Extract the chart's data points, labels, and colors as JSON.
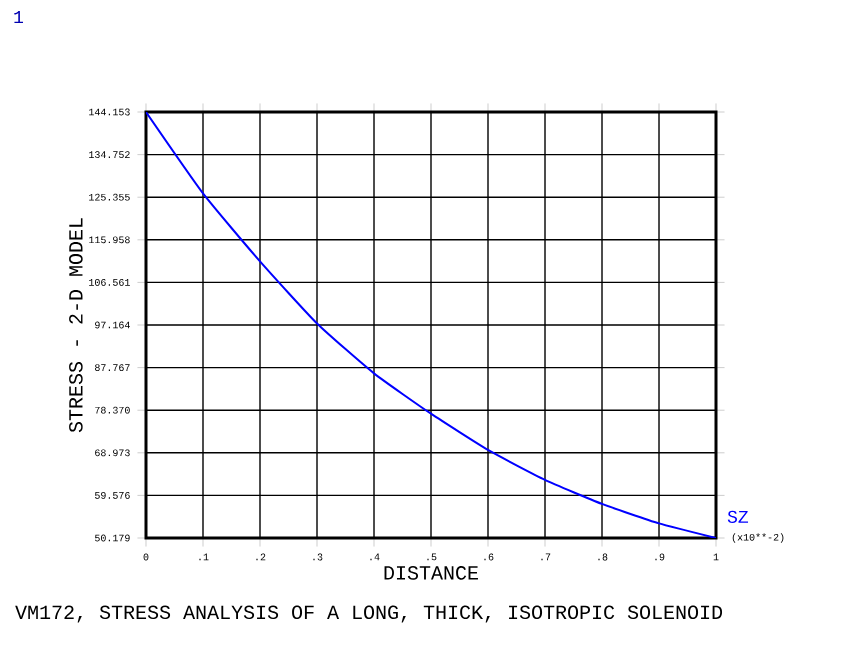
{
  "chart_data": {
    "type": "line",
    "title": "VM172, STRESS ANALYSIS OF A LONG, THICK, ISOTROPIC SOLENOID",
    "xlabel": "DISTANCE",
    "ylabel": "STRESS - 2-D MODEL",
    "annotations": [
      "1",
      "(x10**-2)"
    ],
    "x": [
      0,
      0.1,
      0.2,
      0.3,
      0.4,
      0.5,
      0.6,
      0.7,
      0.8,
      0.9,
      1
    ],
    "series": [
      {
        "name": "SZ",
        "color": "#0000ff",
        "values": [
          144.153,
          126.2,
          111.2,
          97.5,
          86.5,
          77.6,
          69.6,
          63.0,
          57.7,
          53.4,
          50.179
        ]
      }
    ],
    "xlim": [
      0,
      1
    ],
    "ylim": [
      50.179,
      144.153
    ],
    "xticks": [
      0,
      {
        "value": 0.1,
        "label": ".1"
      },
      {
        "value": 0.2,
        "label": ".2"
      },
      {
        "value": 0.3,
        "label": ".3"
      },
      {
        "value": 0.4,
        "label": ".4"
      },
      {
        "value": 0.5,
        "label": ".5"
      },
      {
        "value": 0.6,
        "label": ".6"
      },
      {
        "value": 0.7,
        "label": ".7"
      },
      {
        "value": 0.8,
        "label": ".8"
      },
      {
        "value": 0.9,
        "label": ".9"
      },
      1
    ],
    "yticks": [
      50.179,
      59.576,
      68.973,
      {
        "value": 78.37,
        "label": "78.370"
      },
      87.767,
      97.164,
      106.561,
      115.958,
      125.355,
      134.752,
      144.153
    ],
    "grid": true,
    "legend": false,
    "marker": "none",
    "line_style": "solid"
  }
}
